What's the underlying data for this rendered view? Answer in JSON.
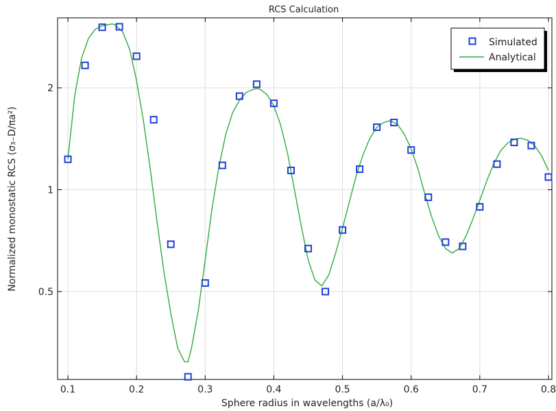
{
  "chart_data": {
    "type": "scatter",
    "title": "RCS Calculation",
    "xlabel": "Sphere radius in wavelengths (a/λ₀)",
    "ylabel": "Normalized monostatic RCS (σ₃₋D/πa²)",
    "xlim": [
      0.085,
      0.805
    ],
    "y_scale": "log",
    "ylim": [
      0.275,
      3.22
    ],
    "x_ticks": [
      {
        "value": 0.1,
        "label": "0.1"
      },
      {
        "value": 0.2,
        "label": "0.2"
      },
      {
        "value": 0.3,
        "label": "0.3"
      },
      {
        "value": 0.4,
        "label": "0.4"
      },
      {
        "value": 0.5,
        "label": "0.5"
      },
      {
        "value": 0.6,
        "label": "0.6"
      },
      {
        "value": 0.7,
        "label": "0.7"
      },
      {
        "value": 0.8,
        "label": "0.8"
      }
    ],
    "y_ticks": [
      {
        "value": 0.5,
        "label": "0.5"
      },
      {
        "value": 1,
        "label": "1"
      },
      {
        "value": 2,
        "label": "2"
      }
    ],
    "grid": true,
    "legend_position": "top-right",
    "series": [
      {
        "name": "Simulated",
        "kind": "markers",
        "marker": "square",
        "color": "#1f3fd6",
        "x": [
          0.1,
          0.125,
          0.15,
          0.175,
          0.2,
          0.225,
          0.25,
          0.275,
          0.3,
          0.325,
          0.35,
          0.375,
          0.4,
          0.425,
          0.45,
          0.475,
          0.5,
          0.525,
          0.55,
          0.575,
          0.6,
          0.625,
          0.65,
          0.675,
          0.7,
          0.725,
          0.75,
          0.775,
          0.8
        ],
        "y": [
          1.23,
          2.33,
          3.02,
          3.03,
          2.48,
          1.61,
          0.69,
          0.28,
          0.53,
          1.18,
          1.89,
          2.05,
          1.8,
          1.14,
          0.67,
          0.5,
          0.76,
          1.15,
          1.53,
          1.58,
          1.31,
          0.95,
          0.7,
          0.68,
          0.89,
          1.19,
          1.38,
          1.35,
          1.09
        ]
      },
      {
        "name": "Analytical",
        "kind": "line",
        "color": "#2eaa3c",
        "x": [
          0.1,
          0.11,
          0.12,
          0.13,
          0.14,
          0.15,
          0.16,
          0.165,
          0.17,
          0.18,
          0.19,
          0.2,
          0.21,
          0.22,
          0.23,
          0.24,
          0.25,
          0.26,
          0.27,
          0.275,
          0.28,
          0.29,
          0.3,
          0.31,
          0.32,
          0.33,
          0.34,
          0.35,
          0.36,
          0.37,
          0.375,
          0.38,
          0.39,
          0.4,
          0.41,
          0.42,
          0.43,
          0.44,
          0.45,
          0.46,
          0.47,
          0.48,
          0.49,
          0.5,
          0.51,
          0.52,
          0.53,
          0.54,
          0.55,
          0.56,
          0.57,
          0.58,
          0.59,
          0.6,
          0.61,
          0.62,
          0.63,
          0.64,
          0.65,
          0.66,
          0.67,
          0.68,
          0.69,
          0.7,
          0.71,
          0.72,
          0.73,
          0.74,
          0.75,
          0.76,
          0.77,
          0.78,
          0.79,
          0.8
        ],
        "y": [
          1.23,
          1.9,
          2.45,
          2.8,
          2.98,
          3.05,
          3.08,
          3.09,
          3.06,
          2.92,
          2.6,
          2.1,
          1.6,
          1.15,
          0.8,
          0.57,
          0.43,
          0.34,
          0.31,
          0.31,
          0.34,
          0.44,
          0.62,
          0.88,
          1.17,
          1.46,
          1.69,
          1.84,
          1.94,
          1.98,
          1.99,
          1.98,
          1.91,
          1.77,
          1.55,
          1.28,
          1.0,
          0.78,
          0.62,
          0.54,
          0.52,
          0.56,
          0.65,
          0.77,
          0.92,
          1.1,
          1.27,
          1.42,
          1.53,
          1.58,
          1.6,
          1.56,
          1.46,
          1.32,
          1.15,
          0.97,
          0.83,
          0.73,
          0.67,
          0.65,
          0.67,
          0.73,
          0.82,
          0.93,
          1.06,
          1.19,
          1.3,
          1.37,
          1.41,
          1.42,
          1.4,
          1.35,
          1.26,
          1.14
        ]
      }
    ]
  }
}
